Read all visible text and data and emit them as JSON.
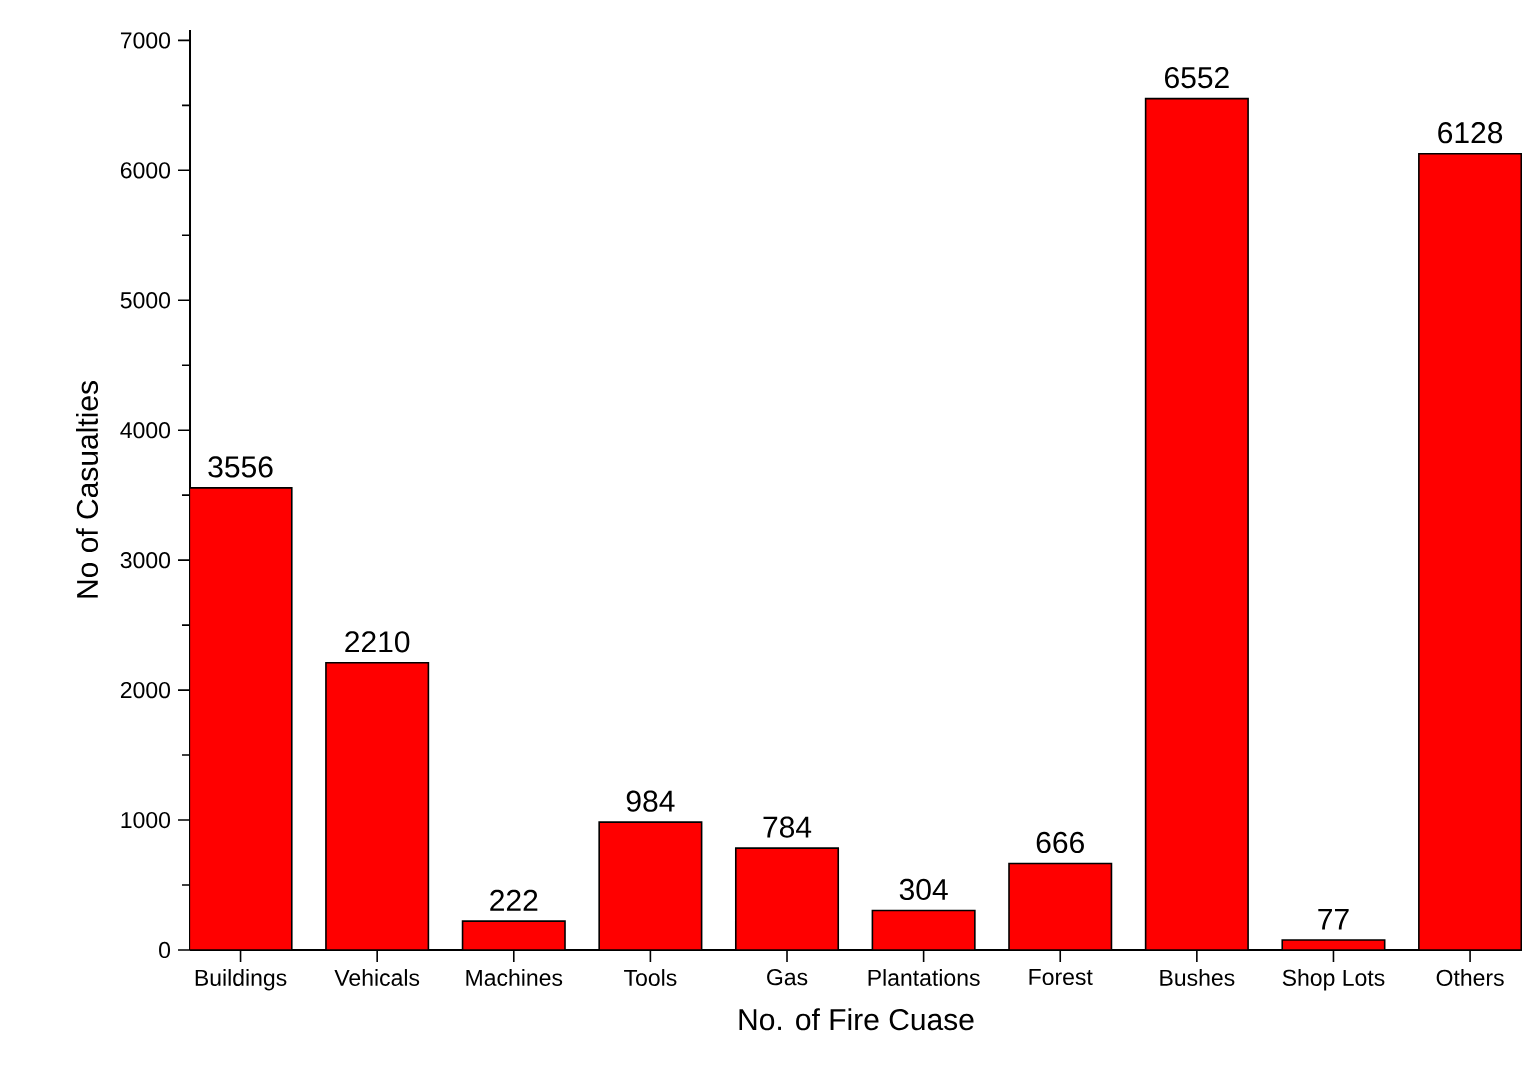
{
  "chart_data": {
    "type": "bar",
    "xlabel": "No. of Fire Cuase",
    "ylabel": "No of Casualties",
    "categories": [
      "Buildings",
      "Vehicals",
      "Machines",
      "Tools",
      "Gas",
      "Plantations",
      "Forest",
      "Bushes",
      "Shop Lots",
      "Others"
    ],
    "values": [
      3556,
      2210,
      222,
      984,
      784,
      304,
      666,
      6552,
      77,
      6128
    ],
    "color": "#ff0000",
    "ylim": [
      0,
      7080
    ],
    "yticks": [
      0,
      1000,
      2000,
      3000,
      4000,
      5000,
      6000,
      7000
    ],
    "data_labels": true
  }
}
